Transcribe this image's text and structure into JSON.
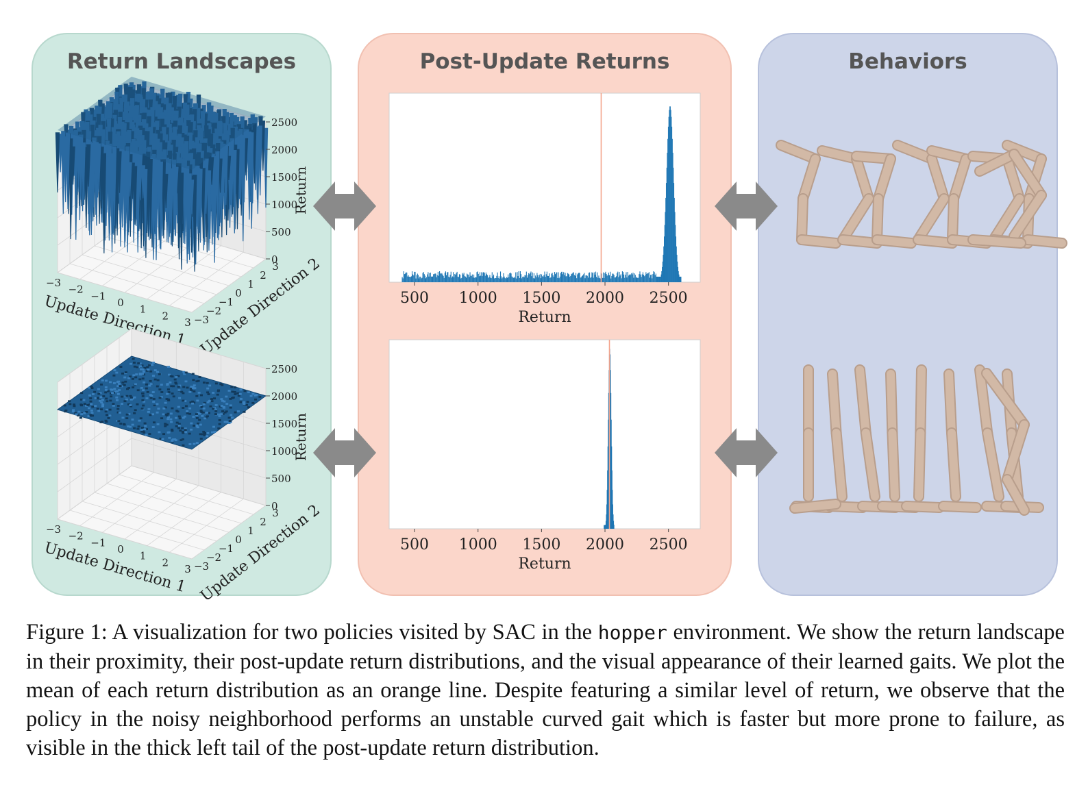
{
  "panels": {
    "left_title": "Return Landscapes",
    "middle_title": "Post-Update Returns",
    "right_title": "Behaviors"
  },
  "landscape_axes": {
    "x_label": "Update Direction 1",
    "y_label": "Update Direction 2",
    "z_label": "Return",
    "xy_ticks": [
      "-3",
      "-2",
      "-1",
      "0",
      "1",
      "2",
      "3"
    ],
    "z_ticks": [
      "0",
      "500",
      "1000",
      "1500",
      "2000",
      "2500"
    ]
  },
  "chart_data": [
    {
      "type": "bar",
      "title": "",
      "xlabel": "Return",
      "ylabel": "",
      "xlim": [
        300,
        2750
      ],
      "x_ticks": [
        500,
        1000,
        1500,
        2000,
        2500
      ],
      "mean_line": 1970,
      "mean_line_color": "#f4a48c",
      "bar_color": "#1f77b4",
      "distribution": "long flat left tail from ~400 to ~2400, sharp peak near ~2500",
      "bins": [
        400,
        2400,
        2450,
        2480,
        2500,
        2520,
        2550,
        2580
      ],
      "heights": [
        0.04,
        0.05,
        0.18,
        0.62,
        0.96,
        0.78,
        0.22,
        0.04
      ]
    },
    {
      "type": "bar",
      "title": "",
      "xlabel": "Return",
      "ylabel": "",
      "xlim": [
        300,
        2750
      ],
      "x_ticks": [
        500,
        1000,
        1500,
        2000,
        2500
      ],
      "mean_line": 2035,
      "mean_line_color": "#f4a48c",
      "bar_color": "#1f77b4",
      "distribution": "narrow peak around ~2035",
      "bins": [
        1990,
        2010,
        2025,
        2035,
        2045,
        2060
      ],
      "heights": [
        0.04,
        0.22,
        0.75,
        0.98,
        0.55,
        0.08
      ]
    }
  ],
  "caption": {
    "label": "Figure 1:",
    "text_before": " A visualization for two policies visited by SAC in the ",
    "env_name": "hopper",
    "text_after": " environment. We show the return landscape in their proximity, their post-update return distributions, and the visual appearance of their learned gaits. We plot the mean of each return distribution as an orange line. Despite featuring a similar level of return, we observe that the policy in the noisy neighborhood performs an unstable curved gait which is faster but more prone to failure, as visible in the thick left tail of the post-update return distribution."
  },
  "colors": {
    "left_panel": "#cfe9e1",
    "middle_panel": "#fbd6ca",
    "right_panel": "#cdd5e9",
    "arrow": "#8a8a8a",
    "surface": "#1f5b8c",
    "hopper": "#d2b9a6"
  }
}
